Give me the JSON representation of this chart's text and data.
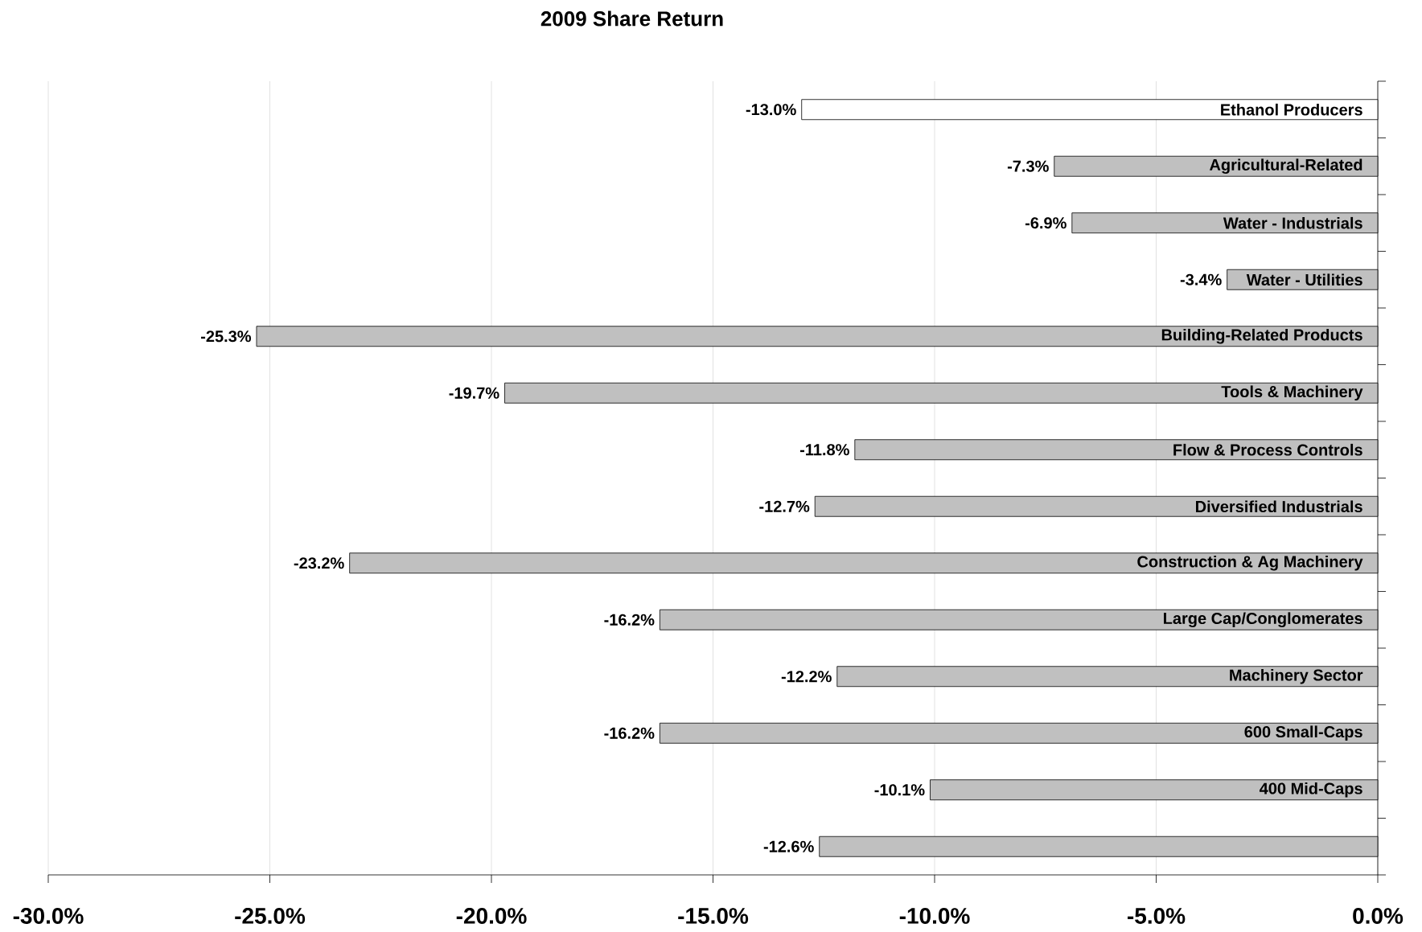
{
  "chart_data": {
    "type": "bar",
    "orientation": "horizontal",
    "title": "2009 Share Return",
    "categories": [
      "Ethanol Producers",
      "Agricultural-Related",
      "Water - Industrials",
      "Water - Utilities",
      "Building-Related Products",
      "Tools & Machinery",
      "Flow & Process Controls",
      "Diversified Industrials",
      "Construction & Ag Machinery",
      "Large Cap/Conglomerates",
      "Machinery Sector",
      "600 Small-Caps",
      "400 Mid-Caps",
      null
    ],
    "values": [
      -13.0,
      -7.3,
      -6.9,
      -3.4,
      -25.3,
      -19.7,
      -11.8,
      -12.7,
      -23.2,
      -16.2,
      -12.2,
      -16.2,
      -10.1,
      -12.6
    ],
    "value_labels": [
      "-13.0%",
      "-7.3%",
      "-6.9%",
      "-3.4%",
      "-25.3%",
      "-19.7%",
      "-11.8%",
      "-12.7%",
      "-23.2%",
      "-16.2%",
      "-12.2%",
      "-16.2%",
      "-10.1%",
      "-12.6%"
    ],
    "colors": [
      "#ffffff",
      "#c0c0c0",
      "#c0c0c0",
      "#c0c0c0",
      "#c0c0c0",
      "#c0c0c0",
      "#c0c0c0",
      "#c0c0c0",
      "#c0c0c0",
      "#c0c0c0",
      "#c0c0c0",
      "#c0c0c0",
      "#c0c0c0",
      "#c0c0c0"
    ],
    "xlim": [
      -30,
      0
    ],
    "xticks": [
      {
        "value": -30,
        "label": "-30.0%"
      },
      {
        "value": -25,
        "label": "-25.0%"
      },
      {
        "value": -20,
        "label": "-20.0%"
      },
      {
        "value": -15,
        "label": "-15.0%"
      },
      {
        "value": -10,
        "label": "-10.0%"
      },
      {
        "value": -5,
        "label": "-5.0%"
      },
      {
        "value": 0,
        "label": "0.0%"
      }
    ],
    "grid": "x"
  }
}
